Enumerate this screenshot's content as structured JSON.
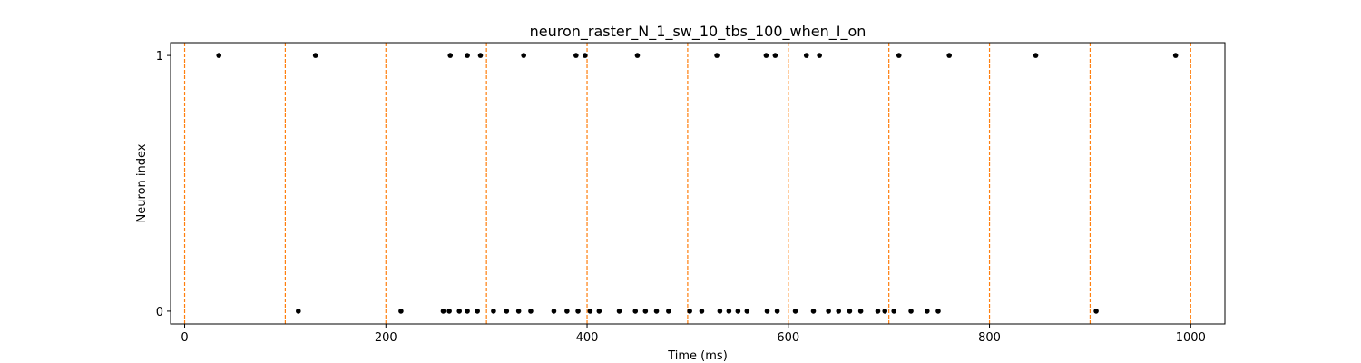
{
  "chart_data": {
    "type": "scatter",
    "title": "neuron_raster_N_1_sw_10_tbs_100_when_I_on",
    "xlabel": "Time (ms)",
    "ylabel": "Neuron index",
    "xlim": [
      -14,
      1034
    ],
    "ylim": [
      -0.05,
      1.05
    ],
    "x_ticks": [
      0,
      200,
      400,
      600,
      800,
      1000
    ],
    "y_ticks": [
      0,
      1
    ],
    "grid": false,
    "marker_color": "#000000",
    "vline_color": "#ff7f0e",
    "vlines": [
      0,
      100,
      200,
      300,
      400,
      500,
      600,
      700,
      800,
      900,
      1000
    ],
    "series": [
      {
        "neuron": 1,
        "x": [
          34,
          130,
          264,
          281,
          294,
          337,
          389,
          398,
          450,
          529,
          578,
          587,
          618,
          631,
          710,
          760,
          846,
          985
        ]
      },
      {
        "neuron": 0,
        "x": [
          113,
          215,
          257,
          263,
          273,
          281,
          291,
          307,
          320,
          332,
          344,
          367,
          380,
          391,
          403,
          412,
          432,
          448,
          458,
          469,
          481,
          502,
          514,
          532,
          541,
          550,
          559,
          579,
          589,
          607,
          625,
          640,
          650,
          661,
          672,
          689,
          696,
          705,
          722,
          738,
          749,
          906
        ]
      }
    ]
  }
}
